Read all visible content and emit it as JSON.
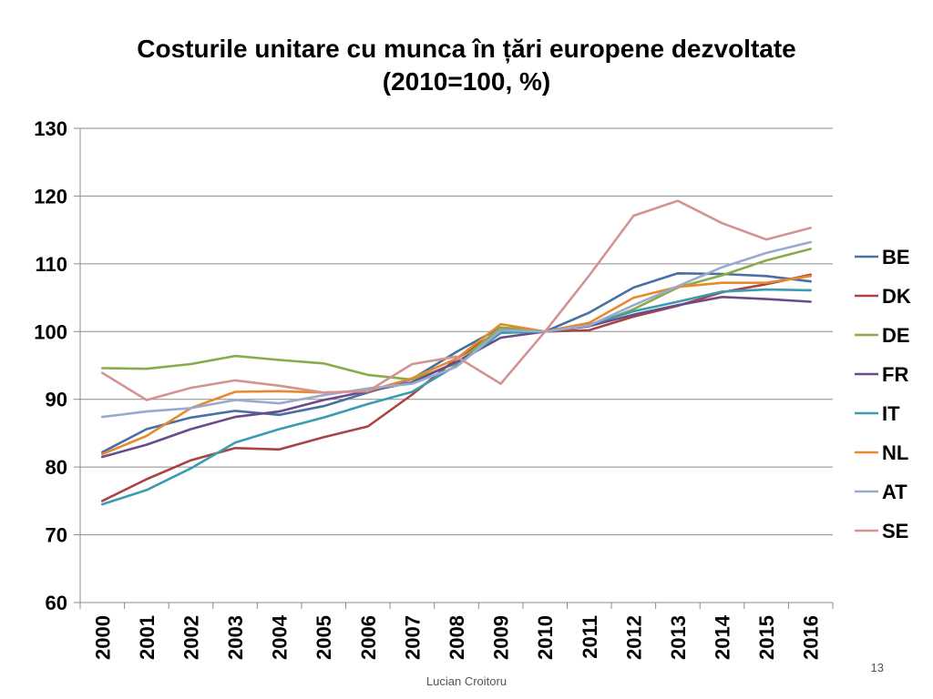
{
  "slide": {
    "title_line1": "Costurile unitare cu munca în țări europene dezvoltate",
    "title_line2": "(2010=100, %)",
    "author": "Lucian Croitoru",
    "page_number": "13"
  },
  "chart_data": {
    "type": "line",
    "title": "Costurile unitare cu munca în țări europene dezvoltate (2010=100, %)",
    "xlabel": "",
    "ylabel": "",
    "x": [
      "2000",
      "2001",
      "2002",
      "2003",
      "2004",
      "2005",
      "2006",
      "2007",
      "2008",
      "2009",
      "2010",
      "2011",
      "2012",
      "2013",
      "2014",
      "2015",
      "2016"
    ],
    "ylim": [
      60,
      130
    ],
    "yticks": [
      "60",
      "70",
      "80",
      "90",
      "100",
      "110",
      "120",
      "130"
    ],
    "grid": true,
    "legend_position": "right",
    "series": [
      {
        "name": "BE",
        "color": "#4a6fa5",
        "values": [
          82.2,
          85.6,
          87.3,
          88.3,
          87.7,
          89.0,
          91.0,
          93.0,
          97.0,
          100.6,
          100.0,
          102.8,
          106.5,
          108.6,
          108.5,
          108.2,
          107.4
        ]
      },
      {
        "name": "DK",
        "color": "#a94442",
        "values": [
          75.0,
          78.2,
          81.0,
          82.8,
          82.6,
          84.4,
          86.0,
          90.7,
          96.0,
          100.3,
          100.0,
          100.2,
          102.2,
          103.8,
          105.8,
          107.0,
          108.4
        ]
      },
      {
        "name": "DE",
        "color": "#8aab4a",
        "values": [
          94.6,
          94.5,
          95.2,
          96.4,
          95.8,
          95.3,
          93.6,
          92.9,
          95.3,
          100.6,
          100.0,
          100.8,
          103.3,
          106.5,
          108.3,
          110.5,
          112.2
        ]
      },
      {
        "name": "FR",
        "color": "#6b4c8a",
        "values": [
          81.5,
          83.3,
          85.6,
          87.4,
          88.2,
          89.9,
          91.2,
          92.5,
          95.5,
          99.1,
          100.0,
          100.8,
          102.5,
          103.9,
          105.1,
          104.8,
          104.4
        ]
      },
      {
        "name": "IT",
        "color": "#3b9bb0",
        "values": [
          74.5,
          76.6,
          79.8,
          83.6,
          85.6,
          87.3,
          89.3,
          91.1,
          95.0,
          99.8,
          100.0,
          101.0,
          103.0,
          104.4,
          105.9,
          106.2,
          106.1
        ]
      },
      {
        "name": "NL",
        "color": "#e8892e",
        "values": [
          81.9,
          84.6,
          88.7,
          91.1,
          91.2,
          91.0,
          91.2,
          93.1,
          96.0,
          101.1,
          100.0,
          101.3,
          105.0,
          106.6,
          107.2,
          107.2,
          108.2
        ]
      },
      {
        "name": "AT",
        "color": "#98aacf",
        "values": [
          87.4,
          88.2,
          88.7,
          89.9,
          89.4,
          90.6,
          91.6,
          92.3,
          94.8,
          100.2,
          100.0,
          100.9,
          103.9,
          106.7,
          109.5,
          111.6,
          113.2
        ]
      },
      {
        "name": "SE",
        "color": "#d49393",
        "values": [
          93.9,
          89.9,
          91.7,
          92.8,
          92.0,
          91.0,
          91.2,
          95.2,
          96.3,
          92.3,
          100.0,
          108.3,
          117.1,
          119.3,
          116.0,
          113.6,
          115.3
        ]
      }
    ]
  }
}
